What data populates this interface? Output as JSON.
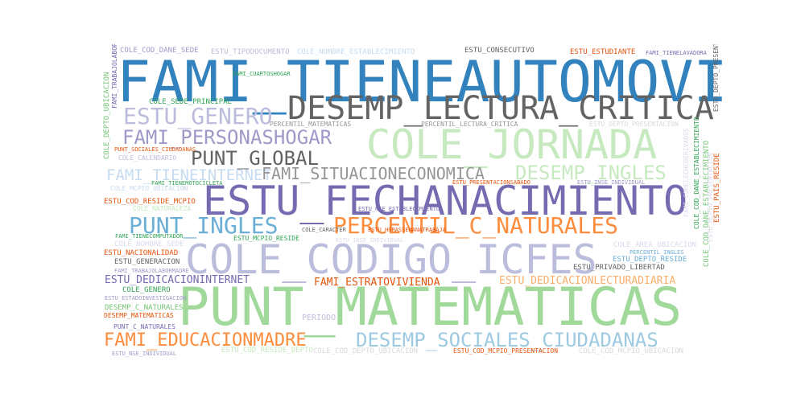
{
  "colors": {
    "blue": "#3182bd",
    "gray_dark": "#636363",
    "gray_mid": "#969696",
    "gray_light": "#d9d9d9",
    "purple": "#756bb1",
    "purple_light": "#9e9ac8",
    "lavender": "#bcbddc",
    "lavender_light": "#dadaeb",
    "green": "#31a354",
    "green_mid": "#74c476",
    "green_light": "#a1d99b",
    "green_pale": "#c7e9c0",
    "orange": "#e6550d",
    "orange_mid": "#fd8d3c",
    "orange_light": "#fdae6b",
    "sky": "#6baed6",
    "sky_light": "#9ecae1",
    "sky_pale": "#c6dbef"
  },
  "words": {
    "w01": "FAMI_TIENEAUTOMOVIL",
    "w02": "DESEMP_LECTURA_CRITICA",
    "w03": "ESTU_GENERO",
    "w04": "COLE_JORNADA",
    "w05": "FAMI_PERSONASHOGAR",
    "w06": "PUNT_GLOBAL",
    "w07": "FAMI_TIENEINTERNET",
    "w08": "FAMI_SITUACIONECONOMICA",
    "w09": "DESEMP_INGLES",
    "w10": "ESTU_FECHANACIMIENTO",
    "w11": "PUNT_INGLES",
    "w12": "PERCENTIL_C_NATURALES",
    "w13": "COLE_CODIGO_ICFES",
    "w14": "PUNT_MATEMATICAS",
    "w15": "FAMI_EDUCACIONMADRE",
    "w16": "DESEMP_SOCIALES_CIUDADANAS",
    "w17": "ESTU_DEDICACIONINTERNET",
    "w18": "FAMI_ESTRATOVIVIENDA",
    "w19": "ESTU_DEDICACIONLECTURADIARIA",
    "w20": "COLE_COD_DANE_SEDE",
    "w21": "ESTU_TIPODOCUMENTO",
    "w22": "COLE_NOMBRE_ESTABLECIMIENTO",
    "w23": "ESTU_CONSECUTIVO",
    "w24": "ESTU_ESTUDIANTE",
    "w25": "FAMI_TIENELAVADORA",
    "w26": "COLE_SEDE_PRINCIPAL",
    "w27": "FAMI_CUARTOSHOGAR",
    "w28": "PERCENTIL_MATEMATICAS",
    "w29": "PERCENTIL_LECTURA_CRITICA",
    "w30": "ESTU_DEPTO_PRESENTACION",
    "w31": "PUNT_SOCIALES_CIUDADANAS",
    "w32": "COLE_CALENDARIO",
    "w33": "COLE_MCPIO_UBICACION",
    "w34": "ESTU_COD_RESIDE_MCPIO",
    "w35": "COLE_NATURALEZA",
    "w36": "ESTU_PRESENTACIONSABADO",
    "w37": "ESTU_INSE_INDIVIDUAL",
    "w38": "FAMI_TIENECOMPUTADOR",
    "w39": "ESTU_MCPIO_RESIDE",
    "w40": "COLE_CARACTER",
    "w41": "COLE_NOMBRE_SEDE",
    "w42": "COLE_AREA_UBICACION",
    "w43": "PERCENTIL_INGLES",
    "w44": "ESTU_DEPTO_RESIDE",
    "w45": "ESTU_NACIONALIDAD",
    "w46": "ESTU_GENERACION",
    "w47": "ESTU_PRIVADO_LIBERTAD",
    "w48": "FAMI_TRABAJOLABORMADRE",
    "w49": "COLE_GENERO",
    "w50": "ESTU_ESTADOINVESTIGACION",
    "w51": "DESEMP_C_NATURALES",
    "w52": "DESEMP_MATEMATICAS",
    "w53": "PUNT_C_NATURALES",
    "w54": "ESTU_NSE_INDIVIDUAL",
    "w55": "PERIODO",
    "w56": "ESTU_COD_RESIDE_DEPTO",
    "w57": "COLE_COD_DEPTO_UBICACION",
    "w58": "ESTU_COD_MCPIO_PRESENTACION",
    "w59": "COLE_COD_MCPIO_UBICACION",
    "w60": "ESTU_NSE_ESTABLECIMIENTO",
    "w61": "ESTU_HORASSEMANATRABAJA",
    "w62": "ESTU_INSE_INDIVIDUAL",
    "w63": "FAMI_TIENEMOTOCICLETA",
    "w64": "COLE_COD_DANE_ESTABLECIMIENTO",
    "w65": "FAMI_COMELECHEDERIVADOS",
    "w66": "FAMI_TRABAJOLABORPADRE",
    "w67": "COLE_DEPTO_UBICACION",
    "w68": "ESTU_DEPTO_PRESENTACION",
    "w69": "COLE_COD_DANE_ESTABLECIMIENTO",
    "w70": "ESTU_PAIS_RESIDE",
    "w71": "COLE_BILINGUE",
    "w72": "ESTU_TIENEETNIA",
    "w73": "ESTU_MCPIO_PRESENTACION"
  }
}
